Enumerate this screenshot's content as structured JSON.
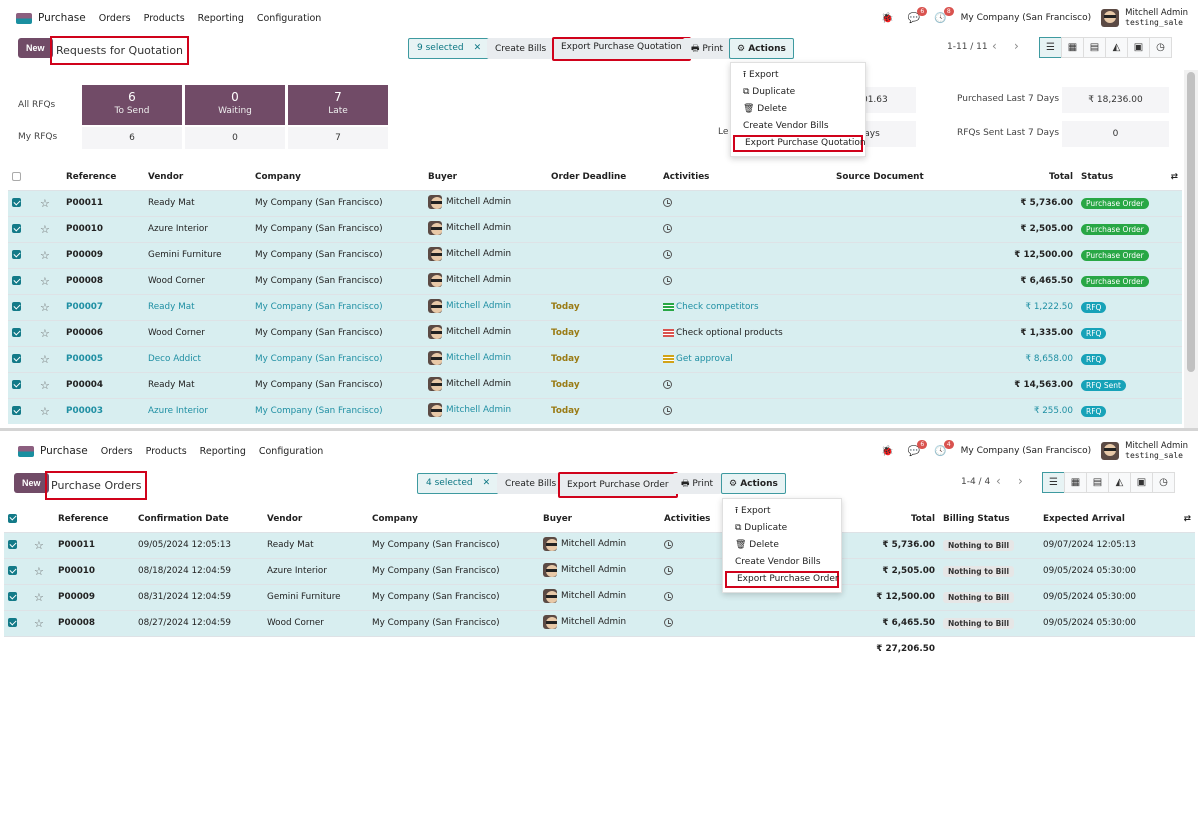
{
  "top": {
    "nav": {
      "app": "Purchase",
      "menus": [
        "Orders",
        "Products",
        "Reporting",
        "Configuration"
      ],
      "msg_count": "6",
      "activity_count": "8",
      "company": "My Company (San Francisco)",
      "user": "Mitchell Admin",
      "db": "testing_sale"
    },
    "new_label": "New",
    "title": "Requests for Quotation",
    "selected": "9 selected",
    "create_bills": "Create Bills",
    "export_btn": "Export Purchase Quotation",
    "print": "Print",
    "actions": "Actions",
    "pager": "1-11 / 11",
    "dash": {
      "all_rfqs": "All RFQs",
      "my_rfqs": "My RFQs",
      "tiles": [
        {
          "n": "6",
          "l": "To Send",
          "my": "6"
        },
        {
          "n": "0",
          "l": "Waiting",
          "my": "0"
        },
        {
          "n": "7",
          "l": "Late",
          "my": "7"
        }
      ],
      "stat1_val": "₹01.63",
      "stat2_label": "Le",
      "stat2_val": "ays",
      "purchased_label": "Purchased Last 7 Days",
      "purchased_val": "₹ 18,236.00",
      "sent_label": "RFQs Sent Last 7 Days",
      "sent_val": "0"
    },
    "menu_items": [
      "Export",
      "Duplicate",
      "Delete",
      "Create Vendor Bills",
      "Export Purchase Quotation"
    ],
    "headers": [
      "Reference",
      "Vendor",
      "Company",
      "Buyer",
      "Order Deadline",
      "Activities",
      "Source Document",
      "Total",
      "Status"
    ],
    "rows": [
      {
        "ref": "P00011",
        "vendor": "Ready Mat",
        "company": "My Company (San Francisco)",
        "buyer": "Mitchell Admin",
        "deadline": "",
        "activity": "",
        "total": "₹ 5,736.00",
        "status": "Purchase Order"
      },
      {
        "ref": "P00010",
        "vendor": "Azure Interior",
        "company": "My Company (San Francisco)",
        "buyer": "Mitchell Admin",
        "deadline": "",
        "activity": "",
        "total": "₹ 2,505.00",
        "status": "Purchase Order"
      },
      {
        "ref": "P00009",
        "vendor": "Gemini Furniture",
        "company": "My Company (San Francisco)",
        "buyer": "Mitchell Admin",
        "deadline": "",
        "activity": "",
        "total": "₹ 12,500.00",
        "status": "Purchase Order"
      },
      {
        "ref": "P00008",
        "vendor": "Wood Corner",
        "company": "My Company (San Francisco)",
        "buyer": "Mitchell Admin",
        "deadline": "",
        "activity": "",
        "total": "₹ 6,465.50",
        "status": "Purchase Order"
      },
      {
        "ref": "P00007",
        "vendor": "Ready Mat",
        "company": "My Company (San Francisco)",
        "buyer": "Mitchell Admin",
        "deadline": "Today",
        "activity": "Check competitors",
        "total": "₹ 1,222.50",
        "status": "RFQ"
      },
      {
        "ref": "P00006",
        "vendor": "Wood Corner",
        "company": "My Company (San Francisco)",
        "buyer": "Mitchell Admin",
        "deadline": "Today",
        "activity": "Check optional products",
        "total": "₹ 1,335.00",
        "status": "RFQ"
      },
      {
        "ref": "P00005",
        "vendor": "Deco Addict",
        "company": "My Company (San Francisco)",
        "buyer": "Mitchell Admin",
        "deadline": "Today",
        "activity": "Get approval",
        "total": "₹ 8,658.00",
        "status": "RFQ"
      },
      {
        "ref": "P00004",
        "vendor": "Ready Mat",
        "company": "My Company (San Francisco)",
        "buyer": "Mitchell Admin",
        "deadline": "Today",
        "activity": "",
        "total": "₹ 14,563.00",
        "status": "RFQ Sent"
      },
      {
        "ref": "P00003",
        "vendor": "Azure Interior",
        "company": "My Company (San Francisco)",
        "buyer": "Mitchell Admin",
        "deadline": "Today",
        "activity": "",
        "total": "₹ 255.00",
        "status": "RFQ"
      }
    ]
  },
  "bottom": {
    "nav": {
      "app": "Purchase",
      "menus": [
        "Orders",
        "Products",
        "Reporting",
        "Configuration"
      ],
      "msg_count": "6",
      "activity_count": "4",
      "company": "My Company (San Francisco)",
      "user": "Mitchell Admin",
      "db": "testing_sale"
    },
    "new_label": "New",
    "title": "Purchase Orders",
    "selected": "4 selected",
    "create_bills": "Create Bills",
    "export_btn": "Export Purchase Order",
    "print": "Print",
    "actions": "Actions",
    "pager": "1-4 / 4",
    "menu_items": [
      "Export",
      "Duplicate",
      "Delete",
      "Create Vendor Bills",
      "Export Purchase Order"
    ],
    "headers": [
      "Reference",
      "Confirmation Date",
      "Vendor",
      "Company",
      "Buyer",
      "Activities",
      "Total",
      "Billing Status",
      "Expected Arrival"
    ],
    "rows": [
      {
        "ref": "P00011",
        "date": "09/05/2024 12:05:13",
        "vendor": "Ready Mat",
        "company": "My Company (San Francisco)",
        "buyer": "Mitchell Admin",
        "total": "₹ 5,736.00",
        "billing": "Nothing to Bill",
        "arrival": "09/07/2024 12:05:13"
      },
      {
        "ref": "P00010",
        "date": "08/18/2024 12:04:59",
        "vendor": "Azure Interior",
        "company": "My Company (San Francisco)",
        "buyer": "Mitchell Admin",
        "total": "₹ 2,505.00",
        "billing": "Nothing to Bill",
        "arrival": "09/05/2024 05:30:00"
      },
      {
        "ref": "P00009",
        "date": "08/31/2024 12:04:59",
        "vendor": "Gemini Furniture",
        "company": "My Company (San Francisco)",
        "buyer": "Mitchell Admin",
        "total": "₹ 12,500.00",
        "billing": "Nothing to Bill",
        "arrival": "09/05/2024 05:30:00"
      },
      {
        "ref": "P00008",
        "date": "08/27/2024 12:04:59",
        "vendor": "Wood Corner",
        "company": "My Company (San Francisco)",
        "buyer": "Mitchell Admin",
        "total": "₹ 6,465.50",
        "billing": "Nothing to Bill",
        "arrival": "09/05/2024 05:30:00"
      }
    ],
    "sum_total": "₹ 27,206.50"
  }
}
